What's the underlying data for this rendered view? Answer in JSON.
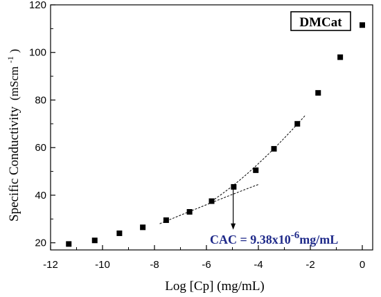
{
  "chart_data": {
    "type": "scatter",
    "xlabel": "Log [Cp] (mg/mL)",
    "ylabel": "Specific Conductivity",
    "ylabel_unit_base": "(mScm",
    "ylabel_unit_exp": "-1",
    "ylabel_unit_close": ")",
    "xlim": [
      -12,
      0.4
    ],
    "ylim": [
      17,
      120
    ],
    "xticks": [
      -12,
      -10,
      -8,
      -6,
      -4,
      -2,
      0
    ],
    "yticks": [
      20,
      40,
      60,
      80,
      100,
      120
    ],
    "x_tick_labels": [
      "-12",
      "-10",
      "-8",
      "-6",
      "-4",
      "-2",
      "0"
    ],
    "y_tick_labels": [
      "20",
      "40",
      "60",
      "80",
      "100",
      "120"
    ],
    "legend": "DMCat",
    "legend_position": "top-right",
    "grid": false,
    "series": [
      {
        "name": "DMCat",
        "marker": "square",
        "x": [
          -11.3,
          -10.3,
          -9.35,
          -8.45,
          -7.55,
          -6.65,
          -5.8,
          -4.95,
          -4.1,
          -3.4,
          -2.5,
          -1.7,
          -0.85,
          0.0
        ],
        "y": [
          19.5,
          21.0,
          24.0,
          26.5,
          29.5,
          33.0,
          37.5,
          43.5,
          50.5,
          59.5,
          70.0,
          83.0,
          98.0,
          111.5
        ]
      }
    ],
    "fit_lines": [
      {
        "x": [
          -7.8,
          -5.4,
          -4.0
        ],
        "y": [
          28.0,
          38.8,
          44.5
        ]
      },
      {
        "x": [
          -5.8,
          -4.2,
          -2.2
        ],
        "y": [
          37.5,
          49.0,
          73.5
        ]
      }
    ],
    "annotation": {
      "text_base": "CAC = 9.38x10",
      "text_exp": "-6",
      "text_unit": "mg/mL",
      "arrow_x": -4.97,
      "arrow_y_from": 43.0,
      "arrow_y_to": 25.5,
      "color": "#1f2a8a"
    }
  }
}
